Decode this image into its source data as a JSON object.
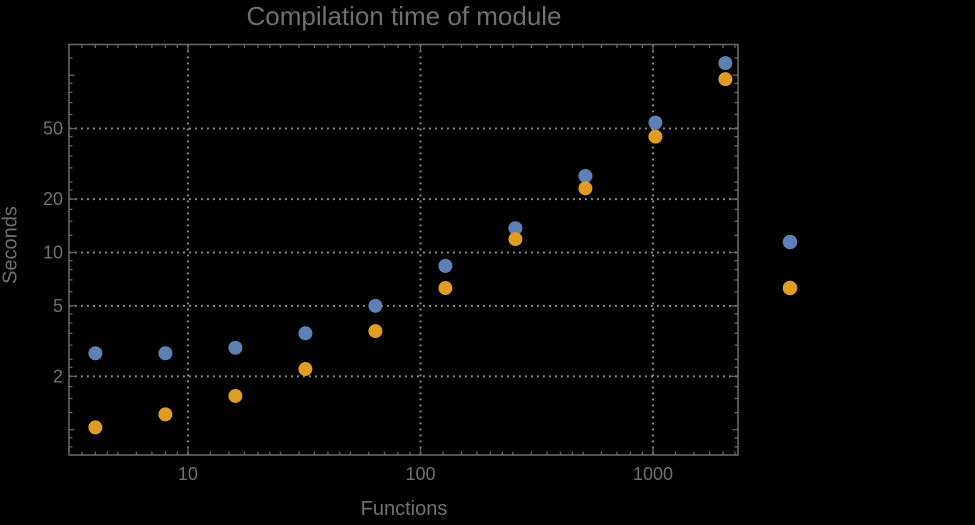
{
  "colors": {
    "background": "#000000",
    "frame": "#666666",
    "grid": "#8d8d8d",
    "text": "#707070",
    "series1": "#5e81b5",
    "series2": "#e19c24"
  },
  "chart_data": {
    "type": "scatter",
    "title": "Compilation time of module",
    "xlabel": "Functions",
    "ylabel": "Seconds",
    "x_scale": "log",
    "y_scale": "log",
    "xlim": [
      3.08,
      2320
    ],
    "ylim": [
      0.72,
      149
    ],
    "grid": "dotted",
    "x": [
      4,
      8,
      16,
      32,
      64,
      128,
      256,
      512,
      1024,
      2048
    ],
    "series": [
      {
        "name": "series-1",
        "color": "#5e81b5",
        "values": [
          2.7,
          2.7,
          2.9,
          3.5,
          5.0,
          8.4,
          13.7,
          27,
          54,
          117
        ]
      },
      {
        "name": "series-2",
        "color": "#e19c24",
        "values": [
          1.03,
          1.22,
          1.55,
          2.2,
          3.6,
          6.3,
          11.9,
          23,
          45,
          95
        ]
      }
    ],
    "x_ticks": [
      {
        "value": 10,
        "label": "10"
      },
      {
        "value": 100,
        "label": "100"
      },
      {
        "value": 1000,
        "label": "1000"
      }
    ],
    "y_ticks": [
      {
        "value": 2,
        "label": "2"
      },
      {
        "value": 5,
        "label": "5"
      },
      {
        "value": 10,
        "label": "10"
      },
      {
        "value": 20,
        "label": "20"
      },
      {
        "value": 50,
        "label": "50"
      }
    ],
    "y_unlabeled_major_ticks": [
      1,
      100
    ],
    "x_grid_values": [
      10,
      100,
      1000
    ],
    "y_grid_values": [
      2,
      5,
      10,
      20,
      50
    ],
    "legend": {
      "position": "right-of-plot",
      "markers": [
        {
          "series": "series-1",
          "color": "#5e81b5",
          "label": ""
        },
        {
          "series": "series-2",
          "color": "#e19c24",
          "label": ""
        }
      ]
    }
  }
}
